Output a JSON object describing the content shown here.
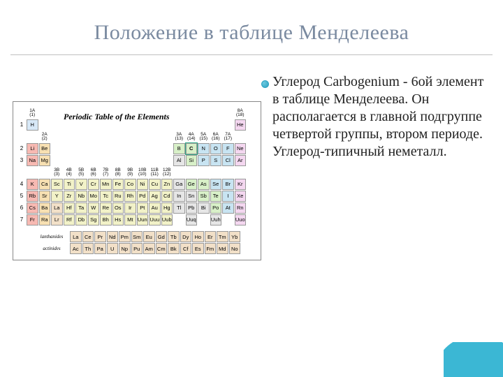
{
  "title": {
    "text": "Положение в таблице Менделеева",
    "color": "#7a8aa0",
    "fontsize": 30
  },
  "body": {
    "text": "Углерод Carbogenium - 6ой элемент в таблице Менделеева. Он располагается в главной подгруппе четвертой группы, втором периоде. Углерод-типичный неметалл."
  },
  "table": {
    "caption": "Periodic Table of the Elements",
    "group_labels": [
      "1A\n(1)",
      "2A\n(2)",
      "3B\n(3)",
      "4B\n(4)",
      "5B\n(5)",
      "6B\n(6)",
      "7B\n(7)",
      "8B\n(8)",
      "9B\n(9)",
      "10B\n(10)",
      "11B\n(11)",
      "12B\n(12)",
      "3A\n(13)",
      "4A\n(14)",
      "5A\n(15)",
      "6A\n(16)",
      "7A\n(17)",
      "8A\n(18)"
    ],
    "periods": [
      [
        {
          "s": "H",
          "c": "#d7e8f7"
        },
        null,
        null,
        null,
        null,
        null,
        null,
        null,
        null,
        null,
        null,
        null,
        null,
        null,
        null,
        null,
        null,
        {
          "s": "He",
          "c": "#f4d7f0"
        }
      ],
      [
        {
          "s": "Li",
          "c": "#f7b9b2"
        },
        {
          "s": "Be",
          "c": "#f7e0b2"
        },
        null,
        null,
        null,
        null,
        null,
        null,
        null,
        null,
        null,
        null,
        {
          "s": "B",
          "c": "#d8f0c8"
        },
        {
          "s": "C",
          "c": "#d8f0c8",
          "hl": true
        },
        {
          "s": "N",
          "c": "#c8e4f2"
        },
        {
          "s": "O",
          "c": "#c8e4f2"
        },
        {
          "s": "F",
          "c": "#c8e4f2"
        },
        {
          "s": "Ne",
          "c": "#f4d7f0"
        }
      ],
      [
        {
          "s": "Na",
          "c": "#f7b9b2"
        },
        {
          "s": "Mg",
          "c": "#f7e0b2"
        },
        null,
        null,
        null,
        null,
        null,
        null,
        null,
        null,
        null,
        null,
        {
          "s": "Al",
          "c": "#e6e6e6"
        },
        {
          "s": "Si",
          "c": "#d8f0c8"
        },
        {
          "s": "P",
          "c": "#c8e4f2"
        },
        {
          "s": "S",
          "c": "#c8e4f2"
        },
        {
          "s": "Cl",
          "c": "#c8e4f2"
        },
        {
          "s": "Ar",
          "c": "#f4d7f0"
        }
      ],
      [
        {
          "s": "K",
          "c": "#f7b9b2"
        },
        {
          "s": "Ca",
          "c": "#f7e0b2"
        },
        {
          "s": "Sc",
          "c": "#f2f2c8"
        },
        {
          "s": "Ti",
          "c": "#f2f2c8"
        },
        {
          "s": "V",
          "c": "#f2f2c8"
        },
        {
          "s": "Cr",
          "c": "#f2f2c8"
        },
        {
          "s": "Mn",
          "c": "#f2f2c8"
        },
        {
          "s": "Fe",
          "c": "#f2f2c8"
        },
        {
          "s": "Co",
          "c": "#f2f2c8"
        },
        {
          "s": "Ni",
          "c": "#f2f2c8"
        },
        {
          "s": "Cu",
          "c": "#f2f2c8"
        },
        {
          "s": "Zn",
          "c": "#f2f2c8"
        },
        {
          "s": "Ga",
          "c": "#e6e6e6"
        },
        {
          "s": "Ge",
          "c": "#d8f0c8"
        },
        {
          "s": "As",
          "c": "#d8f0c8"
        },
        {
          "s": "Se",
          "c": "#c8e4f2"
        },
        {
          "s": "Br",
          "c": "#c8e4f2"
        },
        {
          "s": "Kr",
          "c": "#f4d7f0"
        }
      ],
      [
        {
          "s": "Rb",
          "c": "#f7b9b2"
        },
        {
          "s": "Sr",
          "c": "#f7e0b2"
        },
        {
          "s": "Y",
          "c": "#f2f2c8"
        },
        {
          "s": "Zr",
          "c": "#f2f2c8"
        },
        {
          "s": "Nb",
          "c": "#f2f2c8"
        },
        {
          "s": "Mo",
          "c": "#f2f2c8"
        },
        {
          "s": "Tc",
          "c": "#f2f2c8"
        },
        {
          "s": "Ru",
          "c": "#f2f2c8"
        },
        {
          "s": "Rh",
          "c": "#f2f2c8"
        },
        {
          "s": "Pd",
          "c": "#f2f2c8"
        },
        {
          "s": "Ag",
          "c": "#f2f2c8"
        },
        {
          "s": "Cd",
          "c": "#f2f2c8"
        },
        {
          "s": "In",
          "c": "#e6e6e6"
        },
        {
          "s": "Sn",
          "c": "#e6e6e6"
        },
        {
          "s": "Sb",
          "c": "#d8f0c8"
        },
        {
          "s": "Te",
          "c": "#d8f0c8"
        },
        {
          "s": "I",
          "c": "#c8e4f2"
        },
        {
          "s": "Xe",
          "c": "#f4d7f0"
        }
      ],
      [
        {
          "s": "Cs",
          "c": "#f7b9b2"
        },
        {
          "s": "Ba",
          "c": "#f7e0b2"
        },
        {
          "s": "La",
          "c": "#f2e0c8"
        },
        {
          "s": "Hf",
          "c": "#f2f2c8"
        },
        {
          "s": "Ta",
          "c": "#f2f2c8"
        },
        {
          "s": "W",
          "c": "#f2f2c8"
        },
        {
          "s": "Re",
          "c": "#f2f2c8"
        },
        {
          "s": "Os",
          "c": "#f2f2c8"
        },
        {
          "s": "Ir",
          "c": "#f2f2c8"
        },
        {
          "s": "Pt",
          "c": "#f2f2c8"
        },
        {
          "s": "Au",
          "c": "#f2f2c8"
        },
        {
          "s": "Hg",
          "c": "#f2f2c8"
        },
        {
          "s": "Tl",
          "c": "#e6e6e6"
        },
        {
          "s": "Pb",
          "c": "#e6e6e6"
        },
        {
          "s": "Bi",
          "c": "#e6e6e6"
        },
        {
          "s": "Po",
          "c": "#d8f0c8"
        },
        {
          "s": "At",
          "c": "#c8e4f2"
        },
        {
          "s": "Rn",
          "c": "#f4d7f0"
        }
      ],
      [
        {
          "s": "Fr",
          "c": "#f7b9b2"
        },
        {
          "s": "Ra",
          "c": "#f7e0b2"
        },
        {
          "s": "Lr",
          "c": "#f2e0c8"
        },
        {
          "s": "Rf",
          "c": "#f2f2c8"
        },
        {
          "s": "Db",
          "c": "#f2f2c8"
        },
        {
          "s": "Sg",
          "c": "#f2f2c8"
        },
        {
          "s": "Bh",
          "c": "#f2f2c8"
        },
        {
          "s": "Hs",
          "c": "#f2f2c8"
        },
        {
          "s": "Mt",
          "c": "#f2f2c8"
        },
        {
          "s": "Uun",
          "c": "#f2f2c8"
        },
        {
          "s": "Uuu",
          "c": "#f2f2c8"
        },
        {
          "s": "Uub",
          "c": "#f2f2c8"
        },
        null,
        {
          "s": "Uuq",
          "c": "#e6e6e6"
        },
        null,
        {
          "s": "Uuh",
          "c": "#e6e6e6"
        },
        null,
        {
          "s": "Uuo",
          "c": "#f4d7f0"
        }
      ]
    ],
    "lanth_label": "lanthanides",
    "act_label": "actinides",
    "lanth": [
      {
        "s": "La"
      },
      {
        "s": "Ce"
      },
      {
        "s": "Pr"
      },
      {
        "s": "Nd"
      },
      {
        "s": "Pm"
      },
      {
        "s": "Sm"
      },
      {
        "s": "Eu"
      },
      {
        "s": "Gd"
      },
      {
        "s": "Tb"
      },
      {
        "s": "Dy"
      },
      {
        "s": "Ho"
      },
      {
        "s": "Er"
      },
      {
        "s": "Tm"
      },
      {
        "s": "Yb"
      }
    ],
    "act": [
      {
        "s": "Ac"
      },
      {
        "s": "Th"
      },
      {
        "s": "Pa"
      },
      {
        "s": "U"
      },
      {
        "s": "Np"
      },
      {
        "s": "Pu"
      },
      {
        "s": "Am"
      },
      {
        "s": "Cm"
      },
      {
        "s": "Bk"
      },
      {
        "s": "Cf"
      },
      {
        "s": "Es"
      },
      {
        "s": "Fm"
      },
      {
        "s": "Md"
      },
      {
        "s": "No"
      }
    ],
    "fblock_color": "#f2e0c8"
  }
}
